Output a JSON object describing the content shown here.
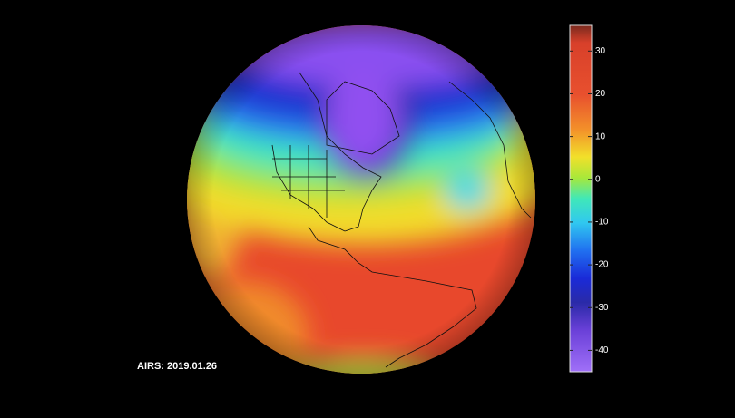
{
  "label": "AIRS: 2019.01.26",
  "colorbar": {
    "range": [
      -45,
      36
    ],
    "ticks": [
      30,
      20,
      10,
      0,
      -10,
      -20,
      -30,
      -40
    ]
  }
}
